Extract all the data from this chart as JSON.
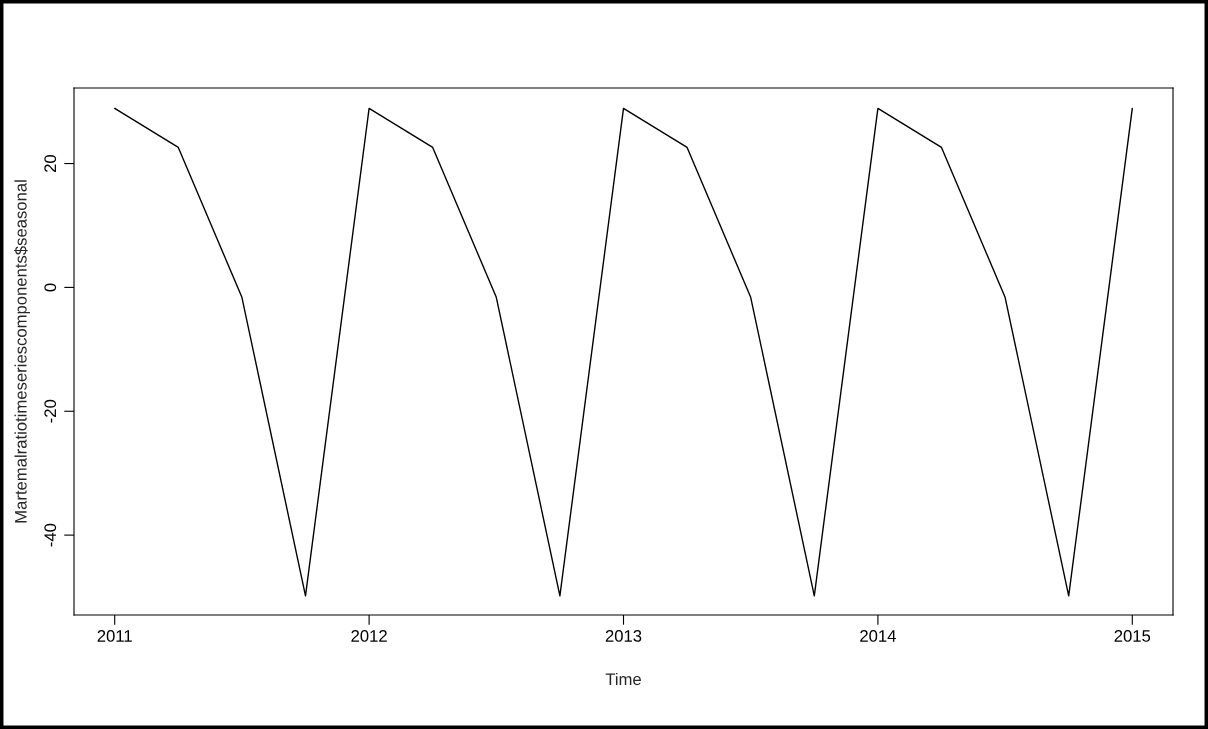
{
  "chart_data": {
    "type": "line",
    "xlabel": "Time",
    "ylabel": "Martemalratiotimeseriescomponents$seasonal",
    "x": [
      2011,
      2011.25,
      2011.5,
      2011.75,
      2012,
      2012.25,
      2012.5,
      2012.75,
      2013,
      2013.25,
      2013.5,
      2013.75,
      2014,
      2014.25,
      2014.5,
      2014.75,
      2015
    ],
    "series": [
      {
        "color": "#000000",
        "values": [
          28.9,
          22.6,
          -1.6,
          -49.8,
          28.9,
          22.6,
          -1.6,
          -49.8,
          28.9,
          22.6,
          -1.6,
          -49.8,
          28.9,
          22.6,
          -1.6,
          -49.8,
          28.9
        ]
      }
    ],
    "xlim": [
      2010.84,
      2015.16
    ],
    "ylim": [
      -52.9,
      32.2
    ],
    "xticks": [
      2011,
      2012,
      2013,
      2014,
      2015
    ],
    "yticks": [
      -40,
      -20,
      0,
      20
    ],
    "grid": false,
    "marker": "none",
    "line_style": "solid"
  }
}
